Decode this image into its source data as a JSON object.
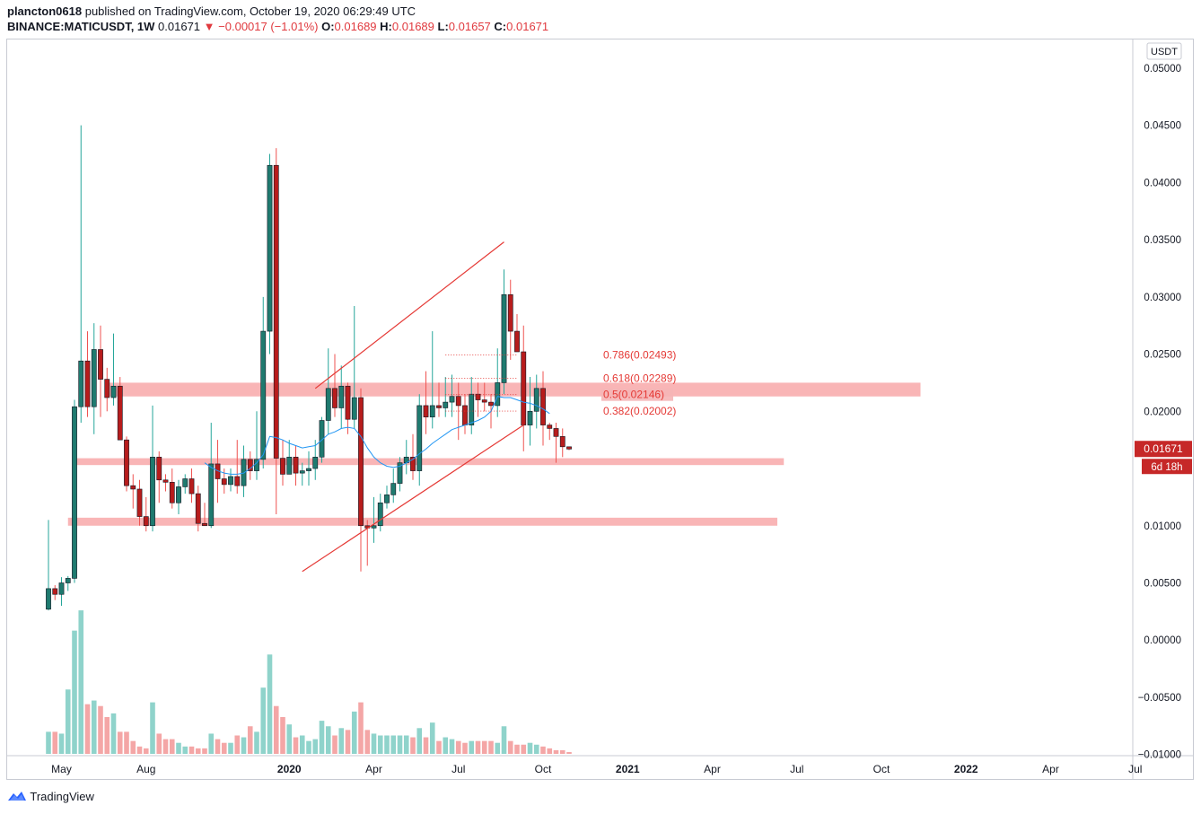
{
  "header": {
    "publisher": "plancton0618",
    "published_text": "published on TradingView.com, October 19, 2020 06:29:49 UTC",
    "symbol": "BINANCE:MATICUSDT, 1W",
    "last": "0.01671",
    "change": "▼ −0.00017 (−1.01%)",
    "open_label": "O:",
    "open": "0.01689",
    "high_label": "H:",
    "high": "0.01689",
    "low_label": "L:",
    "low": "0.01657",
    "close_label": "C:",
    "close": "0.01671"
  },
  "footer": {
    "logo_text": "TradingView"
  },
  "colors": {
    "up": "#26a69a",
    "down": "#ef5350",
    "zone": "#f7a2a4",
    "ma": "#2196f3",
    "channel": "#e53935",
    "fib": "#e53935"
  },
  "chart_data": {
    "type": "candlestick",
    "timeframe": "1W",
    "currency_label": "USDT",
    "ylim": [
      -0.0101,
      0.0525
    ],
    "y_ticks": [
      "0.05000",
      "0.04500",
      "0.04000",
      "0.03500",
      "0.03000",
      "0.02500",
      "0.02000",
      "0.01500",
      "0.01000",
      "0.00500",
      "0.00000",
      "−0.00500",
      "−0.01000"
    ],
    "y_tick_values": [
      0.05,
      0.045,
      0.04,
      0.035,
      0.03,
      0.025,
      0.02,
      0.015,
      0.01,
      0.005,
      0.0,
      -0.005,
      -0.01
    ],
    "x_ticks": [
      {
        "label": "May",
        "week": 2
      },
      {
        "label": "Aug",
        "week": 15
      },
      {
        "label": "2020",
        "week": 37
      },
      {
        "label": "Apr",
        "week": 50
      },
      {
        "label": "Jul",
        "week": 63
      },
      {
        "label": "Oct",
        "week": 76
      },
      {
        "label": "2021",
        "week": 89
      },
      {
        "label": "Apr",
        "week": 102
      },
      {
        "label": "Jul",
        "week": 115
      },
      {
        "label": "Oct",
        "week": 128
      },
      {
        "label": "2022",
        "week": 141
      },
      {
        "label": "Apr",
        "week": 154
      },
      {
        "label": "Jul",
        "week": 167
      }
    ],
    "last_price_label": "0.01671",
    "countdown_label": "6d 18h",
    "candles": [
      [
        0.0027,
        0.0105,
        0.0026,
        0.0045
      ],
      [
        0.0045,
        0.0048,
        0.0035,
        0.004
      ],
      [
        0.004,
        0.0055,
        0.003,
        0.005
      ],
      [
        0.005,
        0.0056,
        0.0043,
        0.0054
      ],
      [
        0.0054,
        0.021,
        0.005,
        0.0204
      ],
      [
        0.0204,
        0.045,
        0.019,
        0.0244
      ],
      [
        0.0244,
        0.027,
        0.0195,
        0.0204
      ],
      [
        0.0204,
        0.0277,
        0.018,
        0.0254
      ],
      [
        0.0254,
        0.0275,
        0.0195,
        0.0228
      ],
      [
        0.0228,
        0.0238,
        0.02,
        0.0212
      ],
      [
        0.0212,
        0.0268,
        0.0205,
        0.0222
      ],
      [
        0.0222,
        0.023,
        0.018,
        0.0175
      ],
      [
        0.0175,
        0.0178,
        0.013,
        0.0135
      ],
      [
        0.0135,
        0.0145,
        0.0115,
        0.0132
      ],
      [
        0.0132,
        0.014,
        0.01,
        0.0108
      ],
      [
        0.0108,
        0.0125,
        0.0095,
        0.01
      ],
      [
        0.01,
        0.0205,
        0.0095,
        0.016
      ],
      [
        0.016,
        0.0165,
        0.012,
        0.014
      ],
      [
        0.014,
        0.0145,
        0.013,
        0.0138
      ],
      [
        0.0138,
        0.015,
        0.0115,
        0.012
      ],
      [
        0.012,
        0.014,
        0.011,
        0.0134
      ],
      [
        0.0134,
        0.0145,
        0.0128,
        0.0141
      ],
      [
        0.0141,
        0.015,
        0.012,
        0.0128
      ],
      [
        0.0128,
        0.0135,
        0.0095,
        0.0102
      ],
      [
        0.0102,
        0.012,
        0.01,
        0.01
      ],
      [
        0.01,
        0.019,
        0.0098,
        0.0154
      ],
      [
        0.0154,
        0.0175,
        0.012,
        0.0141
      ],
      [
        0.0141,
        0.015,
        0.0128,
        0.0136
      ],
      [
        0.0136,
        0.015,
        0.013,
        0.0143
      ],
      [
        0.0143,
        0.0175,
        0.0128,
        0.0135
      ],
      [
        0.0135,
        0.017,
        0.0125,
        0.0158
      ],
      [
        0.0158,
        0.0165,
        0.014,
        0.0148
      ],
      [
        0.0148,
        0.02,
        0.014,
        0.0158
      ],
      [
        0.0158,
        0.03,
        0.015,
        0.027
      ],
      [
        0.027,
        0.0425,
        0.025,
        0.0415
      ],
      [
        0.0415,
        0.043,
        0.011,
        0.0159
      ],
      [
        0.0159,
        0.0175,
        0.0135,
        0.0145
      ],
      [
        0.0145,
        0.0175,
        0.0145,
        0.016
      ],
      [
        0.016,
        0.017,
        0.0135,
        0.0146
      ],
      [
        0.0146,
        0.0155,
        0.0135,
        0.0148
      ],
      [
        0.0148,
        0.0165,
        0.0135,
        0.015
      ],
      [
        0.015,
        0.0175,
        0.014,
        0.016
      ],
      [
        0.016,
        0.0195,
        0.0155,
        0.0192
      ],
      [
        0.0192,
        0.0255,
        0.018,
        0.022
      ],
      [
        0.022,
        0.025,
        0.0195,
        0.0203
      ],
      [
        0.0203,
        0.024,
        0.0185,
        0.0222
      ],
      [
        0.0222,
        0.0225,
        0.018,
        0.0193
      ],
      [
        0.0193,
        0.0292,
        0.0185,
        0.0212
      ],
      [
        0.0212,
        0.022,
        0.006,
        0.01
      ],
      [
        0.01,
        0.0105,
        0.0065,
        0.0098
      ],
      [
        0.0098,
        0.0125,
        0.0085,
        0.01
      ],
      [
        0.01,
        0.0128,
        0.0095,
        0.012
      ],
      [
        0.012,
        0.0135,
        0.0115,
        0.0127
      ],
      [
        0.0127,
        0.015,
        0.012,
        0.0137
      ],
      [
        0.0137,
        0.016,
        0.013,
        0.0155
      ],
      [
        0.0155,
        0.0175,
        0.0145,
        0.016
      ],
      [
        0.016,
        0.018,
        0.014,
        0.0148
      ],
      [
        0.0148,
        0.0215,
        0.0135,
        0.0205
      ],
      [
        0.0205,
        0.0235,
        0.018,
        0.0195
      ],
      [
        0.0195,
        0.027,
        0.0185,
        0.0205
      ],
      [
        0.0205,
        0.0225,
        0.0195,
        0.0203
      ],
      [
        0.0203,
        0.023,
        0.0195,
        0.0208
      ],
      [
        0.0208,
        0.0232,
        0.0195,
        0.0213
      ],
      [
        0.0213,
        0.0225,
        0.0175,
        0.0205
      ],
      [
        0.0205,
        0.0215,
        0.018,
        0.0188
      ],
      [
        0.0188,
        0.023,
        0.018,
        0.0215
      ],
      [
        0.0215,
        0.0225,
        0.0195,
        0.021
      ],
      [
        0.021,
        0.0225,
        0.02,
        0.0208
      ],
      [
        0.0208,
        0.0215,
        0.0185,
        0.0205
      ],
      [
        0.0205,
        0.0255,
        0.0195,
        0.0225
      ],
      [
        0.0225,
        0.0324,
        0.0215,
        0.0302
      ],
      [
        0.0302,
        0.0315,
        0.0245,
        0.027
      ],
      [
        0.027,
        0.0285,
        0.0255,
        0.0252
      ],
      [
        0.0252,
        0.0275,
        0.0165,
        0.0188
      ],
      [
        0.0188,
        0.023,
        0.017,
        0.02
      ],
      [
        0.02,
        0.0232,
        0.0185,
        0.022
      ],
      [
        0.022,
        0.0235,
        0.017,
        0.0188
      ],
      [
        0.0188,
        0.019,
        0.0175,
        0.0185
      ],
      [
        0.0185,
        0.019,
        0.0155,
        0.0178
      ],
      [
        0.0178,
        0.0185,
        0.016,
        0.0169
      ],
      [
        0.0169,
        0.0169,
        0.0166,
        0.0167
      ]
    ],
    "volume_relative": [
      0.12,
      0.12,
      0.11,
      0.35,
      0.67,
      0.78,
      0.27,
      0.29,
      0.26,
      0.2,
      0.22,
      0.12,
      0.12,
      0.07,
      0.04,
      0.03,
      0.28,
      0.11,
      0.08,
      0.08,
      0.06,
      0.04,
      0.04,
      0.03,
      0.03,
      0.11,
      0.08,
      0.06,
      0.06,
      0.1,
      0.09,
      0.15,
      0.12,
      0.36,
      0.54,
      0.26,
      0.2,
      0.16,
      0.09,
      0.1,
      0.07,
      0.08,
      0.18,
      0.15,
      0.1,
      0.14,
      0.13,
      0.23,
      0.28,
      0.13,
      0.11,
      0.1,
      0.1,
      0.1,
      0.1,
      0.1,
      0.09,
      0.14,
      0.09,
      0.17,
      0.07,
      0.09,
      0.08,
      0.07,
      0.06,
      0.07,
      0.07,
      0.07,
      0.07,
      0.06,
      0.15,
      0.07,
      0.05,
      0.05,
      0.06,
      0.05,
      0.04,
      0.03,
      0.02,
      0.02,
      0.01
    ],
    "moving_average": [
      [
        24,
        0.0155
      ],
      [
        25,
        0.0151
      ],
      [
        26,
        0.0148
      ],
      [
        27,
        0.0146
      ],
      [
        28,
        0.0145
      ],
      [
        29,
        0.0145
      ],
      [
        30,
        0.0146
      ],
      [
        31,
        0.015
      ],
      [
        32,
        0.0155
      ],
      [
        33,
        0.0162
      ],
      [
        34,
        0.0178
      ],
      [
        35,
        0.0177
      ],
      [
        36,
        0.0175
      ],
      [
        37,
        0.0172
      ],
      [
        38,
        0.017
      ],
      [
        39,
        0.0168
      ],
      [
        40,
        0.0169
      ],
      [
        41,
        0.017
      ],
      [
        42,
        0.0175
      ],
      [
        43,
        0.018
      ],
      [
        44,
        0.0182
      ],
      [
        45,
        0.0185
      ],
      [
        46,
        0.0186
      ],
      [
        47,
        0.0185
      ],
      [
        48,
        0.0178
      ],
      [
        49,
        0.0168
      ],
      [
        50,
        0.016
      ],
      [
        51,
        0.0155
      ],
      [
        52,
        0.0152
      ],
      [
        53,
        0.0151
      ],
      [
        54,
        0.0152
      ],
      [
        55,
        0.0155
      ],
      [
        56,
        0.0158
      ],
      [
        57,
        0.0163
      ],
      [
        58,
        0.0167
      ],
      [
        59,
        0.0172
      ],
      [
        60,
        0.0176
      ],
      [
        61,
        0.018
      ],
      [
        62,
        0.0184
      ],
      [
        63,
        0.0186
      ],
      [
        64,
        0.0188
      ],
      [
        65,
        0.019
      ],
      [
        66,
        0.0192
      ],
      [
        67,
        0.0195
      ],
      [
        68,
        0.02
      ],
      [
        69,
        0.0213
      ],
      [
        70,
        0.0212
      ],
      [
        71,
        0.0212
      ],
      [
        72,
        0.021
      ],
      [
        73,
        0.0208
      ],
      [
        74,
        0.0207
      ],
      [
        75,
        0.0205
      ],
      [
        76,
        0.0202
      ],
      [
        77,
        0.0198
      ]
    ],
    "support_resistance_zones": [
      {
        "from_week": 9,
        "to_week": 134,
        "low": 0.0213,
        "high": 0.0225
      },
      {
        "from_week": 4,
        "to_week": 113,
        "low": 0.0153,
        "high": 0.0159
      },
      {
        "from_week": 3,
        "to_week": 112,
        "low": 0.01,
        "high": 0.0107
      }
    ],
    "channel": {
      "upper": [
        [
          41,
          0.022
        ],
        [
          70,
          0.0348
        ]
      ],
      "lower": [
        [
          39,
          0.006
        ],
        [
          73,
          0.0188
        ]
      ]
    },
    "fib_levels": [
      {
        "label": "0.786(0.02493)",
        "value": 0.02493,
        "boxed": false
      },
      {
        "label": "0.618(0.02289)",
        "value": 0.02289,
        "boxed": false
      },
      {
        "label": "0.5(0.02146)",
        "value": 0.02146,
        "boxed": true
      },
      {
        "label": "0.382(0.02002)",
        "value": 0.02002,
        "boxed": false
      }
    ],
    "fib_from_week": 61,
    "fib_to_week": 72
  }
}
